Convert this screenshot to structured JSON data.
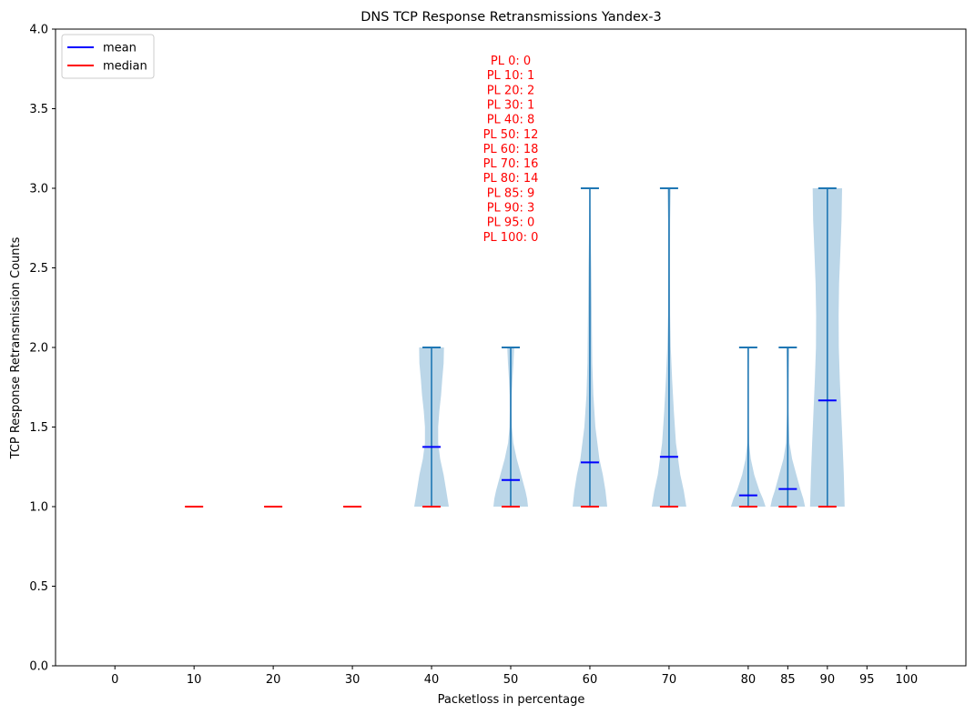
{
  "chart_data": {
    "type": "violin",
    "title": "DNS TCP Response Retransmissions Yandex-3",
    "xlabel": "Packetloss in percentage",
    "ylabel": "TCP Response Retransmission Counts",
    "ylim": [
      0,
      4
    ],
    "yticks": [
      "0.0",
      "0.5",
      "1.0",
      "1.5",
      "2.0",
      "2.5",
      "3.0",
      "3.5",
      "4.0"
    ],
    "xlim": [
      -7.5,
      107.5
    ],
    "categories": [
      0,
      10,
      20,
      30,
      40,
      50,
      60,
      70,
      80,
      85,
      90,
      95,
      100
    ],
    "grid": false,
    "legend": {
      "placement": "top-left",
      "entries": [
        {
          "label": "mean",
          "color": "#0000ff"
        },
        {
          "label": "median",
          "color": "#ff0000"
        }
      ]
    },
    "colors": {
      "violin_fill": "#1f77b4",
      "violin_line": "#1f77b4",
      "mean": "#0000ff",
      "median": "#ff0000",
      "annotation": "#ff0000"
    },
    "violins": [
      {
        "x": 10,
        "min": 1,
        "max": 1,
        "mean": 1.0,
        "median": 1,
        "profile": []
      },
      {
        "x": 20,
        "min": 1,
        "max": 1,
        "mean": 1.0,
        "median": 1,
        "profile": []
      },
      {
        "x": 30,
        "min": 1,
        "max": 1,
        "mean": 1.0,
        "median": 1,
        "profile": []
      },
      {
        "x": 40,
        "min": 1,
        "max": 2,
        "mean": 1.375,
        "median": 1,
        "profile": [
          [
            1.0,
            1.0
          ],
          [
            1.1,
            0.85
          ],
          [
            1.2,
            0.7
          ],
          [
            1.3,
            0.5
          ],
          [
            1.4,
            0.38
          ],
          [
            1.5,
            0.38
          ],
          [
            1.6,
            0.45
          ],
          [
            1.7,
            0.55
          ],
          [
            1.8,
            0.62
          ],
          [
            1.9,
            0.7
          ],
          [
            2.0,
            0.72
          ]
        ]
      },
      {
        "x": 50,
        "min": 1,
        "max": 2,
        "mean": 1.167,
        "median": 1,
        "profile": [
          [
            1.0,
            1.0
          ],
          [
            1.05,
            0.95
          ],
          [
            1.1,
            0.85
          ],
          [
            1.2,
            0.6
          ],
          [
            1.3,
            0.35
          ],
          [
            1.4,
            0.15
          ],
          [
            1.5,
            0.07
          ],
          [
            1.6,
            0.05
          ],
          [
            1.7,
            0.06
          ],
          [
            1.8,
            0.1
          ],
          [
            1.9,
            0.16
          ],
          [
            2.0,
            0.2
          ]
        ]
      },
      {
        "x": 60,
        "min": 1,
        "max": 3,
        "mean": 1.278,
        "median": 1,
        "profile": [
          [
            1.0,
            1.0
          ],
          [
            1.1,
            0.9
          ],
          [
            1.2,
            0.75
          ],
          [
            1.3,
            0.55
          ],
          [
            1.5,
            0.32
          ],
          [
            1.7,
            0.2
          ],
          [
            1.9,
            0.14
          ],
          [
            2.1,
            0.12
          ],
          [
            2.3,
            0.1
          ],
          [
            2.5,
            0.08
          ],
          [
            2.7,
            0.05
          ],
          [
            2.9,
            0.03
          ],
          [
            3.0,
            0.02
          ]
        ]
      },
      {
        "x": 70,
        "min": 1,
        "max": 3,
        "mean": 1.313,
        "median": 1,
        "profile": [
          [
            1.0,
            1.0
          ],
          [
            1.1,
            0.85
          ],
          [
            1.2,
            0.65
          ],
          [
            1.4,
            0.4
          ],
          [
            1.6,
            0.28
          ],
          [
            1.8,
            0.18
          ],
          [
            2.0,
            0.1
          ],
          [
            2.2,
            0.06
          ],
          [
            2.5,
            0.05
          ],
          [
            2.8,
            0.06
          ],
          [
            3.0,
            0.1
          ]
        ]
      },
      {
        "x": 80,
        "min": 1,
        "max": 2,
        "mean": 1.071,
        "median": 1,
        "profile": [
          [
            1.0,
            1.0
          ],
          [
            1.05,
            0.85
          ],
          [
            1.1,
            0.65
          ],
          [
            1.2,
            0.35
          ],
          [
            1.3,
            0.15
          ],
          [
            1.4,
            0.05
          ],
          [
            1.6,
            0.02
          ],
          [
            1.8,
            0.03
          ],
          [
            2.0,
            0.05
          ]
        ]
      },
      {
        "x": 85,
        "min": 1,
        "max": 2,
        "mean": 1.111,
        "median": 1,
        "profile": [
          [
            1.0,
            1.0
          ],
          [
            1.05,
            0.9
          ],
          [
            1.1,
            0.75
          ],
          [
            1.2,
            0.5
          ],
          [
            1.3,
            0.25
          ],
          [
            1.4,
            0.1
          ],
          [
            1.6,
            0.04
          ],
          [
            1.8,
            0.05
          ],
          [
            2.0,
            0.08
          ]
        ]
      },
      {
        "x": 90,
        "min": 1,
        "max": 3,
        "mean": 1.667,
        "median": 1,
        "profile": [
          [
            1.0,
            1.0
          ],
          [
            1.2,
            0.95
          ],
          [
            1.4,
            0.88
          ],
          [
            1.6,
            0.8
          ],
          [
            1.8,
            0.72
          ],
          [
            2.0,
            0.66
          ],
          [
            2.2,
            0.65
          ],
          [
            2.4,
            0.68
          ],
          [
            2.6,
            0.75
          ],
          [
            2.8,
            0.82
          ],
          [
            3.0,
            0.85
          ]
        ]
      }
    ],
    "annotation_lines": [
      "PL 0: 0",
      "PL 10: 1",
      "PL 20: 2",
      "PL 30: 1",
      "PL 40: 8",
      "PL 50: 12",
      "PL 60: 18",
      "PL 70: 16",
      "PL 80: 14",
      "PL 85: 9",
      "PL 90: 3",
      "PL 95: 0",
      "PL 100: 0"
    ]
  }
}
